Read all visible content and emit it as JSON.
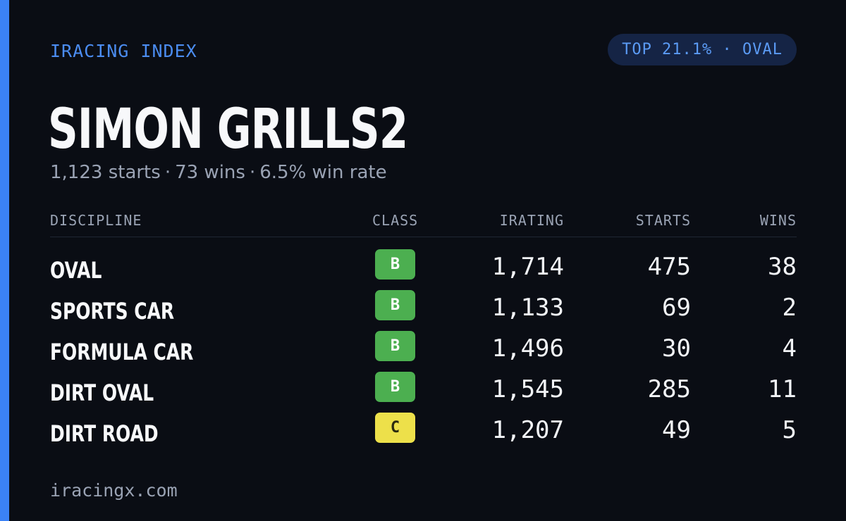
{
  "header": {
    "brand": "IRACING INDEX",
    "rank_badge": "TOP 21.1% · OVAL"
  },
  "driver": {
    "name": "SIMON GRILLS2",
    "starts_text": "1,123 starts",
    "wins_text": "73 wins",
    "winrate_text": "6.5% win rate",
    "separator": "·"
  },
  "table": {
    "columns": {
      "discipline": "DISCIPLINE",
      "class": "CLASS",
      "irating": "IRATING",
      "starts": "STARTS",
      "wins": "WINS"
    },
    "rows": [
      {
        "discipline": "OVAL",
        "class": "B",
        "class_color": "#4caf50",
        "class_text_color": "#ffffff",
        "irating": "1,714",
        "starts": "475",
        "wins": "38"
      },
      {
        "discipline": "SPORTS CAR",
        "class": "B",
        "class_color": "#4caf50",
        "class_text_color": "#ffffff",
        "irating": "1,133",
        "starts": "69",
        "wins": "2"
      },
      {
        "discipline": "FORMULA CAR",
        "class": "B",
        "class_color": "#4caf50",
        "class_text_color": "#ffffff",
        "irating": "1,496",
        "starts": "30",
        "wins": "4"
      },
      {
        "discipline": "DIRT OVAL",
        "class": "B",
        "class_color": "#4caf50",
        "class_text_color": "#ffffff",
        "irating": "1,545",
        "starts": "285",
        "wins": "11"
      },
      {
        "discipline": "DIRT ROAD",
        "class": "C",
        "class_color": "#ede04a",
        "class_text_color": "#2a2a10",
        "irating": "1,207",
        "starts": "49",
        "wins": "5"
      }
    ]
  },
  "footer": {
    "site": "iracingx.com"
  },
  "colors": {
    "accent": "#3b82f6",
    "background": "#0a0d14"
  }
}
